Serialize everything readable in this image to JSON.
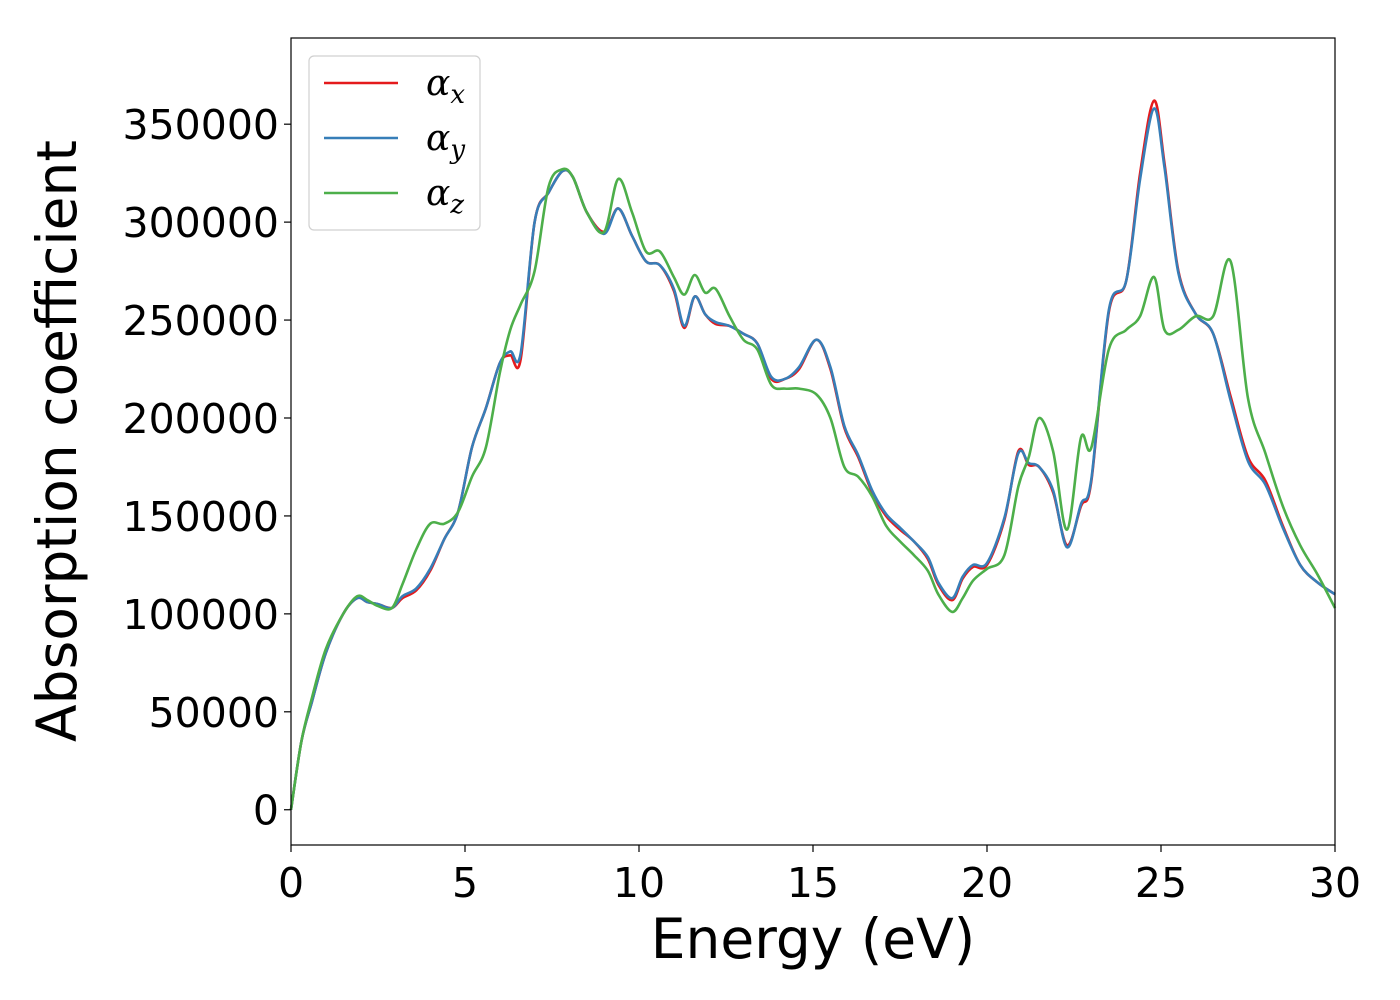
{
  "chart_data": {
    "type": "line",
    "title": "",
    "xlabel": "Energy (eV)",
    "ylabel": "Absorption coefficient",
    "xlim": [
      0,
      30
    ],
    "ylim": [
      -18000,
      394000
    ],
    "xticks": [
      0,
      5,
      10,
      15,
      20,
      25,
      30
    ],
    "yticks": [
      0,
      50000,
      100000,
      150000,
      200000,
      250000,
      300000,
      350000
    ],
    "grid": false,
    "legend": "top-left",
    "series": [
      {
        "name": "α_x",
        "legend_base": "α",
        "legend_sub": "x",
        "color": "#e41a1c",
        "x": [
          0,
          0.3,
          0.6,
          1.0,
          1.5,
          1.9,
          2.2,
          2.5,
          2.9,
          3.2,
          3.6,
          4.0,
          4.4,
          4.8,
          5.2,
          5.6,
          6.0,
          6.3,
          6.6,
          7.0,
          7.4,
          7.8,
          8.1,
          8.5,
          9.0,
          9.4,
          9.8,
          10.2,
          10.6,
          11.0,
          11.3,
          11.6,
          11.9,
          12.2,
          12.6,
          13.0,
          13.4,
          13.8,
          14.2,
          14.6,
          15.1,
          15.5,
          15.9,
          16.3,
          16.7,
          17.1,
          17.5,
          17.9,
          18.3,
          18.6,
          19.0,
          19.3,
          19.6,
          20.0,
          20.5,
          20.9,
          21.2,
          21.5,
          21.9,
          22.3,
          22.7,
          23.0,
          23.5,
          24.0,
          24.4,
          24.8,
          25.1,
          25.5,
          26.0,
          26.5,
          27.0,
          27.5,
          28.0,
          28.5,
          29.0,
          29.5,
          30.0
        ],
        "y": [
          0,
          35000,
          55000,
          80000,
          100000,
          108000,
          106000,
          105000,
          103000,
          108000,
          112000,
          122000,
          138000,
          152000,
          185000,
          205000,
          228000,
          232000,
          230000,
          300000,
          315000,
          326000,
          323000,
          305000,
          295000,
          307000,
          293000,
          280000,
          278000,
          265000,
          246000,
          262000,
          253000,
          248000,
          247000,
          243000,
          238000,
          220000,
          220000,
          225000,
          240000,
          225000,
          195000,
          180000,
          162000,
          150000,
          143000,
          137000,
          128000,
          115000,
          107000,
          118000,
          124000,
          125000,
          148000,
          183000,
          176000,
          175000,
          162000,
          135000,
          155000,
          168000,
          254000,
          270000,
          325000,
          362000,
          330000,
          275000,
          253000,
          243000,
          211000,
          180000,
          168000,
          145000,
          125000,
          116000,
          110000
        ]
      },
      {
        "name": "α_y",
        "legend_base": "α",
        "legend_sub": "y",
        "color": "#377eb8",
        "x": [
          0,
          0.3,
          0.6,
          1.0,
          1.5,
          1.9,
          2.2,
          2.5,
          2.9,
          3.2,
          3.6,
          4.0,
          4.4,
          4.8,
          5.2,
          5.6,
          6.0,
          6.3,
          6.6,
          7.0,
          7.4,
          7.8,
          8.1,
          8.5,
          9.0,
          9.4,
          9.8,
          10.2,
          10.6,
          11.0,
          11.3,
          11.6,
          11.9,
          12.2,
          12.6,
          13.0,
          13.4,
          13.8,
          14.2,
          14.6,
          15.1,
          15.5,
          15.9,
          16.3,
          16.7,
          17.1,
          17.5,
          17.9,
          18.3,
          18.6,
          19.0,
          19.3,
          19.6,
          20.0,
          20.5,
          20.9,
          21.2,
          21.5,
          21.9,
          22.3,
          22.7,
          23.0,
          23.5,
          24.0,
          24.4,
          24.8,
          25.1,
          25.5,
          26.0,
          26.5,
          27.0,
          27.5,
          28.0,
          28.5,
          29.0,
          29.5,
          30.0
        ],
        "y": [
          0,
          35000,
          55000,
          80000,
          100000,
          108000,
          106000,
          105000,
          103000,
          109000,
          113000,
          123000,
          138000,
          152000,
          185000,
          205000,
          228000,
          234000,
          233000,
          300000,
          315000,
          326000,
          323000,
          305000,
          294000,
          307000,
          293000,
          280000,
          278000,
          266000,
          247000,
          262000,
          253000,
          249000,
          247000,
          243000,
          238000,
          221000,
          220000,
          226000,
          240000,
          226000,
          196000,
          181000,
          163000,
          151000,
          144000,
          137000,
          129000,
          116000,
          108000,
          119000,
          125000,
          126000,
          149000,
          182000,
          177000,
          175000,
          163000,
          134000,
          156000,
          169000,
          255000,
          270000,
          322000,
          358000,
          328000,
          274000,
          253000,
          243000,
          209000,
          178000,
          166000,
          144000,
          125000,
          116000,
          110000
        ]
      },
      {
        "name": "α_z",
        "legend_base": "α",
        "legend_sub": "z",
        "color": "#4daf4a",
        "x": [
          0,
          0.3,
          0.6,
          1.0,
          1.5,
          1.9,
          2.2,
          2.5,
          2.9,
          3.2,
          3.6,
          4.0,
          4.4,
          4.8,
          5.2,
          5.6,
          6.0,
          6.3,
          6.6,
          7.0,
          7.4,
          7.8,
          8.1,
          8.5,
          9.0,
          9.4,
          9.8,
          10.2,
          10.6,
          11.0,
          11.3,
          11.6,
          11.9,
          12.2,
          12.6,
          13.0,
          13.4,
          13.8,
          14.2,
          14.6,
          15.1,
          15.5,
          15.9,
          16.3,
          16.7,
          17.1,
          17.5,
          17.9,
          18.3,
          18.6,
          19.0,
          19.3,
          19.6,
          20.0,
          20.5,
          20.9,
          21.2,
          21.5,
          21.9,
          22.3,
          22.7,
          23.0,
          23.5,
          24.0,
          24.4,
          24.8,
          25.1,
          25.5,
          26.0,
          26.5,
          27.0,
          27.5,
          28.0,
          28.5,
          29.0,
          29.5,
          30.0
        ],
        "y": [
          0,
          35000,
          57000,
          82000,
          100000,
          109000,
          107000,
          104000,
          103000,
          115000,
          133000,
          146000,
          146000,
          152000,
          170000,
          185000,
          223000,
          245000,
          258000,
          275000,
          318000,
          327000,
          323000,
          305000,
          295000,
          322000,
          305000,
          285000,
          285000,
          272000,
          263000,
          273000,
          264000,
          266000,
          252000,
          240000,
          235000,
          217000,
          215000,
          215000,
          212000,
          200000,
          175000,
          170000,
          160000,
          145000,
          137000,
          130000,
          122000,
          110000,
          101000,
          108000,
          117000,
          123000,
          130000,
          165000,
          180000,
          200000,
          183000,
          143000,
          190000,
          185000,
          235000,
          245000,
          252000,
          272000,
          245000,
          245000,
          252000,
          252000,
          280000,
          210000,
          182000,
          155000,
          135000,
          120000,
          103000
        ]
      }
    ]
  }
}
